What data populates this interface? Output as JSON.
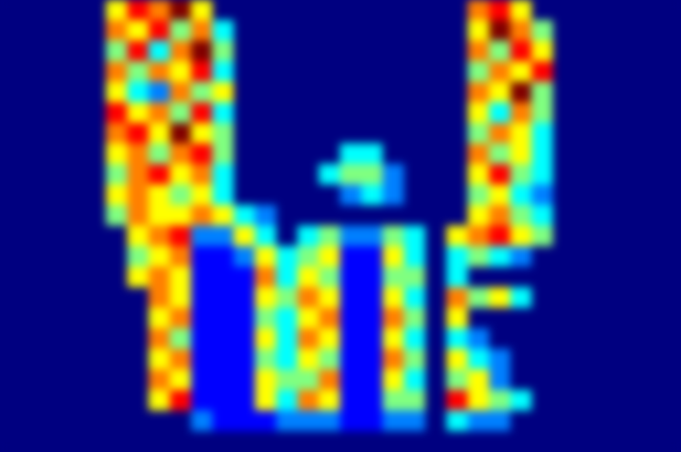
{
  "chart_data": {
    "type": "heatmap",
    "xlim": [
      0,
      32
    ],
    "ylim": [
      0,
      22
    ],
    "tick_labels": false,
    "cells": [
      [
        0,
        0,
        0,
        0,
        0,
        5,
        7,
        6,
        8,
        5,
        0,
        0,
        0,
        0,
        0,
        0,
        0,
        0,
        0,
        0,
        0,
        0,
        6,
        7,
        5,
        0,
        0,
        0,
        0,
        0,
        0,
        0
      ],
      [
        0,
        0,
        0,
        0,
        0,
        6,
        5,
        7,
        4,
        6,
        3,
        0,
        0,
        0,
        0,
        0,
        0,
        0,
        0,
        0,
        0,
        0,
        5,
        8,
        6,
        4,
        0,
        0,
        0,
        0,
        0,
        0
      ],
      [
        0,
        0,
        0,
        0,
        0,
        4,
        7,
        3,
        6,
        8,
        4,
        0,
        0,
        0,
        0,
        0,
        0,
        0,
        0,
        0,
        0,
        0,
        6,
        4,
        7,
        5,
        0,
        0,
        0,
        0,
        0,
        0
      ],
      [
        0,
        0,
        0,
        0,
        0,
        6,
        4,
        6,
        5,
        7,
        3,
        0,
        0,
        0,
        0,
        0,
        0,
        0,
        0,
        0,
        0,
        0,
        4,
        6,
        5,
        7,
        0,
        0,
        0,
        0,
        0,
        0
      ],
      [
        0,
        0,
        0,
        0,
        0,
        5,
        3,
        2,
        6,
        4,
        5,
        0,
        0,
        0,
        0,
        0,
        0,
        0,
        0,
        0,
        0,
        0,
        6,
        5,
        8,
        4,
        0,
        0,
        0,
        0,
        0,
        0
      ],
      [
        0,
        0,
        0,
        0,
        0,
        7,
        5,
        6,
        4,
        7,
        3,
        0,
        0,
        0,
        0,
        0,
        0,
        0,
        0,
        0,
        0,
        0,
        5,
        3,
        6,
        4,
        0,
        0,
        0,
        0,
        0,
        0
      ],
      [
        0,
        0,
        0,
        0,
        0,
        6,
        7,
        5,
        8,
        5,
        4,
        0,
        0,
        0,
        0,
        0,
        0,
        0,
        0,
        0,
        0,
        0,
        4,
        6,
        5,
        3,
        0,
        0,
        0,
        0,
        0,
        0
      ],
      [
        0,
        0,
        0,
        0,
        0,
        5,
        6,
        4,
        6,
        7,
        4,
        0,
        0,
        0,
        0,
        0,
        3,
        3,
        0,
        0,
        0,
        0,
        6,
        4,
        5,
        3,
        0,
        0,
        0,
        0,
        0,
        0
      ],
      [
        0,
        0,
        0,
        0,
        0,
        4,
        6,
        7,
        5,
        6,
        3,
        0,
        0,
        0,
        0,
        3,
        4,
        4,
        2,
        0,
        0,
        0,
        5,
        7,
        4,
        3,
        0,
        0,
        0,
        0,
        0,
        0
      ],
      [
        0,
        0,
        0,
        0,
        0,
        5,
        6,
        5,
        4,
        5,
        3,
        0,
        0,
        0,
        0,
        0,
        2,
        3,
        2,
        0,
        0,
        0,
        4,
        5,
        3,
        2,
        0,
        0,
        0,
        0,
        0,
        0
      ],
      [
        0,
        0,
        0,
        0,
        0,
        4,
        6,
        5,
        5,
        6,
        5,
        3,
        2,
        0,
        0,
        0,
        0,
        0,
        0,
        0,
        0,
        0,
        5,
        6,
        4,
        3,
        0,
        0,
        0,
        0,
        0,
        0
      ],
      [
        0,
        0,
        0,
        0,
        0,
        0,
        5,
        6,
        7,
        2,
        2,
        5,
        3,
        0,
        3,
        4,
        2,
        2,
        4,
        3,
        0,
        5,
        6,
        7,
        5,
        4,
        0,
        0,
        0,
        0,
        0,
        0
      ],
      [
        0,
        0,
        0,
        0,
        0,
        0,
        4,
        5,
        6,
        1,
        1,
        2,
        5,
        3,
        4,
        5,
        1,
        1,
        5,
        3,
        0,
        3,
        4,
        3,
        2,
        0,
        0,
        0,
        0,
        0,
        0,
        0
      ],
      [
        0,
        0,
        0,
        0,
        0,
        0,
        5,
        6,
        5,
        1,
        1,
        1,
        6,
        3,
        5,
        4,
        1,
        1,
        4,
        4,
        0,
        3,
        0,
        0,
        0,
        0,
        0,
        0,
        0,
        0,
        0,
        0
      ],
      [
        0,
        0,
        0,
        0,
        0,
        0,
        0,
        6,
        5,
        1,
        1,
        1,
        5,
        4,
        6,
        5,
        1,
        1,
        5,
        3,
        0,
        6,
        4,
        5,
        3,
        0,
        0,
        0,
        0,
        0,
        0,
        0
      ],
      [
        0,
        0,
        0,
        0,
        0,
        0,
        0,
        5,
        6,
        1,
        1,
        1,
        4,
        3,
        5,
        6,
        1,
        1,
        6,
        4,
        0,
        5,
        0,
        0,
        0,
        0,
        0,
        0,
        0,
        0,
        0,
        0
      ],
      [
        0,
        0,
        0,
        0,
        0,
        0,
        0,
        6,
        4,
        1,
        1,
        1,
        5,
        3,
        6,
        5,
        1,
        1,
        5,
        3,
        0,
        3,
        2,
        0,
        0,
        0,
        0,
        0,
        0,
        0,
        0,
        0
      ],
      [
        0,
        0,
        0,
        0,
        0,
        0,
        0,
        5,
        6,
        1,
        1,
        1,
        4,
        3,
        5,
        4,
        1,
        1,
        6,
        4,
        0,
        5,
        3,
        2,
        0,
        0,
        0,
        0,
        0,
        0,
        0,
        0
      ],
      [
        0,
        0,
        0,
        0,
        0,
        0,
        0,
        6,
        5,
        1,
        1,
        1,
        5,
        4,
        4,
        6,
        1,
        1,
        5,
        3,
        0,
        4,
        5,
        2,
        0,
        0,
        0,
        0,
        0,
        0,
        0,
        0
      ],
      [
        0,
        0,
        0,
        0,
        0,
        0,
        0,
        5,
        7,
        1,
        1,
        1,
        5,
        3,
        6,
        5,
        1,
        1,
        4,
        4,
        0,
        7,
        5,
        4,
        3,
        0,
        0,
        0,
        0,
        0,
        0,
        0
      ],
      [
        0,
        0,
        0,
        0,
        0,
        0,
        0,
        0,
        0,
        2,
        1,
        1,
        1,
        2,
        2,
        2,
        1,
        1,
        2,
        2,
        0,
        3,
        2,
        2,
        0,
        0,
        0,
        0,
        0,
        0,
        0,
        0
      ],
      [
        0,
        0,
        0,
        0,
        0,
        0,
        0,
        0,
        0,
        0,
        0,
        0,
        0,
        0,
        0,
        0,
        0,
        0,
        0,
        0,
        0,
        0,
        0,
        0,
        0,
        0,
        0,
        0,
        0,
        0,
        0,
        0
      ]
    ]
  }
}
